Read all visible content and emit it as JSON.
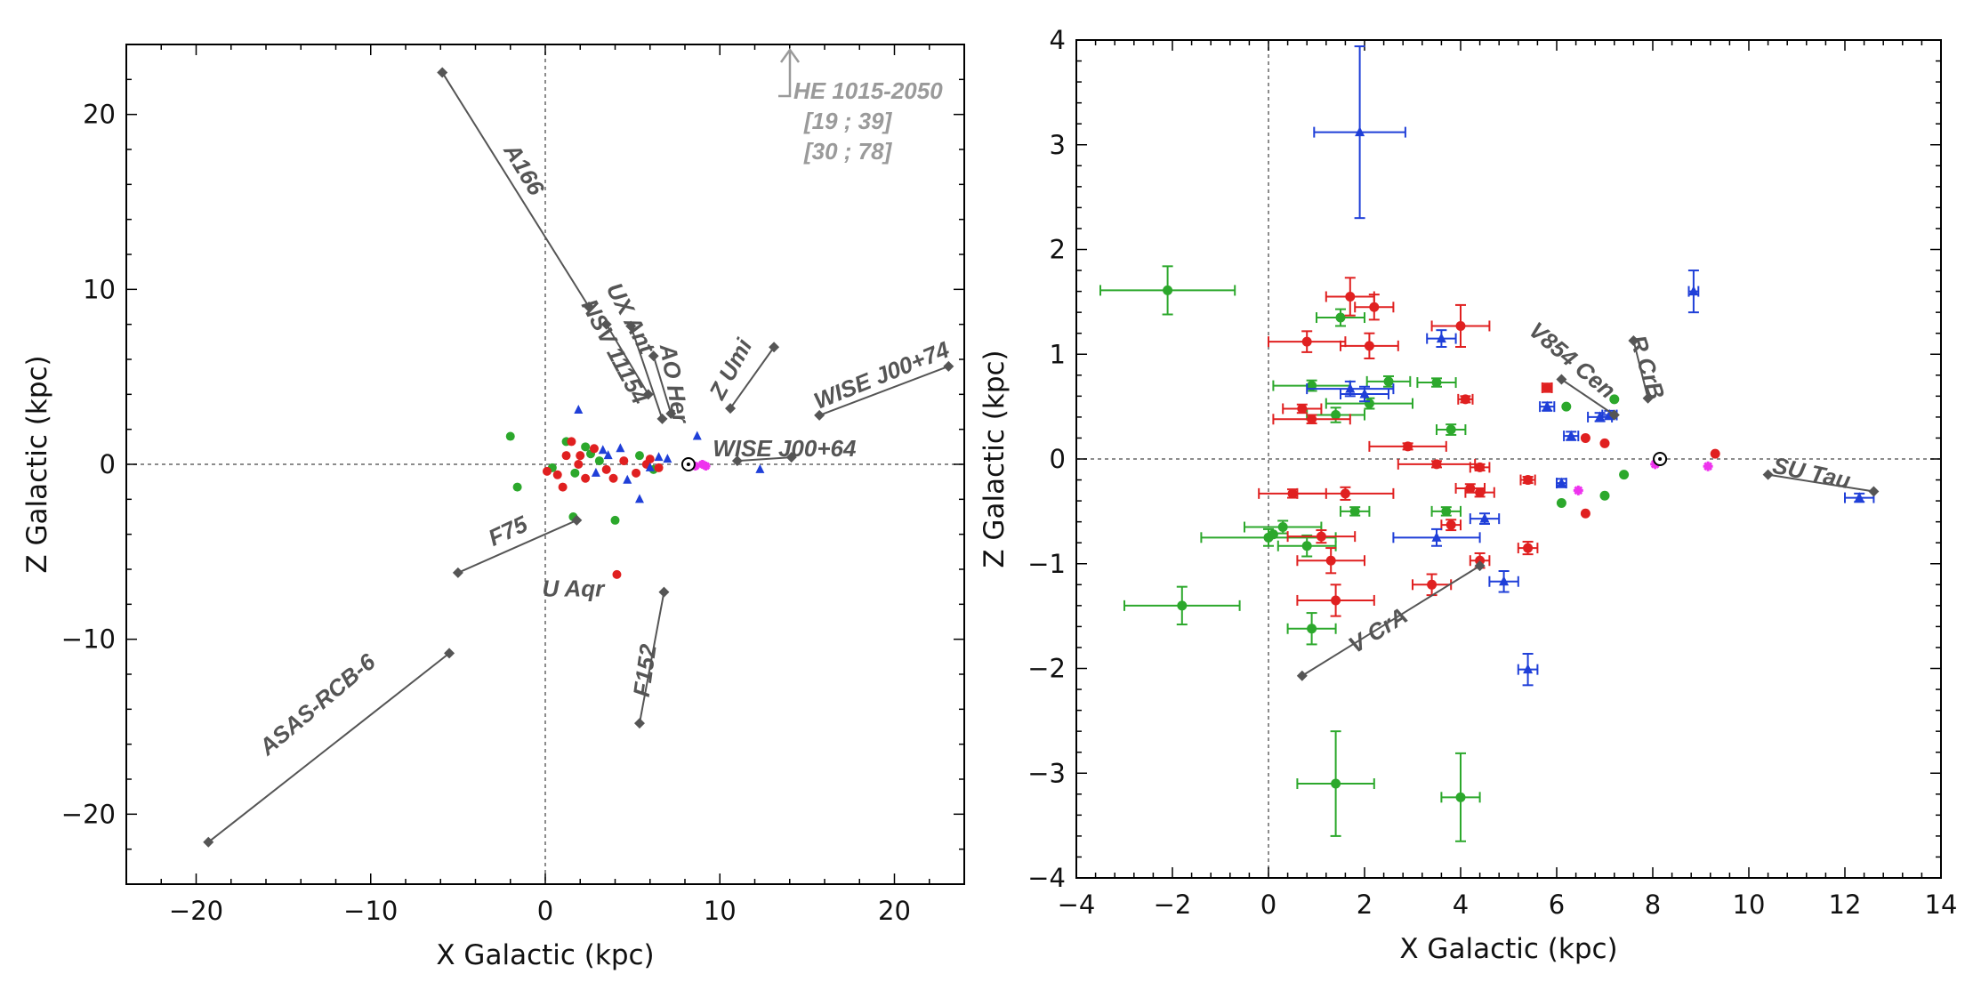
{
  "colors": {
    "green": "#2ca82c",
    "red": "#e02020",
    "blue": "#1f3fd8",
    "magenta": "#ee33ee",
    "track": "#555555",
    "annotation": "#555555",
    "annotation_light": "#9a9a9a"
  },
  "chart_data": [
    {
      "type": "scatter",
      "panel": "left",
      "xlabel": "X Galactic (kpc)",
      "ylabel": "Z Galactic (kpc)",
      "xlim": [
        -24,
        24
      ],
      "ylim": [
        -24,
        24
      ],
      "xticks": [
        -20,
        -10,
        0,
        10,
        20
      ],
      "yticks": [
        -20,
        -10,
        0,
        10,
        20
      ],
      "ref_lines": {
        "x": 0,
        "y": 0
      },
      "sun": [
        8.2,
        0.0
      ],
      "tracks": [
        {
          "name": "A166",
          "label_pos": [
            -1.3,
            16.8
          ],
          "rotate": 59,
          "from": [
            -5.9,
            22.4
          ],
          "to": [
            2.5,
            9.0
          ]
        },
        {
          "name": "NSV 11154",
          "label_pos": [
            3.9,
            6.4
          ],
          "rotate": 62,
          "from": [
            3.5,
            8.0
          ],
          "to": [
            5.9,
            4.0
          ]
        },
        {
          "name": "UX Ant",
          "label_pos": [
            4.8,
            8.3
          ],
          "rotate": 62,
          "from": [
            4.9,
            7.9
          ],
          "to": [
            6.7,
            2.6
          ]
        },
        {
          "name": "AO Her",
          "label_pos": [
            7.3,
            4.6
          ],
          "rotate": 80,
          "from": [
            6.2,
            6.2
          ],
          "to": [
            7.2,
            2.9
          ]
        },
        {
          "name": "Z Umi",
          "label_pos": [
            10.7,
            5.4
          ],
          "rotate": -62,
          "from": [
            10.6,
            3.2
          ],
          "to": [
            13.1,
            6.7
          ]
        },
        {
          "name": "WISE J00+74",
          "label_pos": [
            19.3,
            5.0
          ],
          "rotate": -22,
          "from": [
            15.7,
            2.8
          ],
          "to": [
            23.1,
            5.6
          ]
        },
        {
          "name": "WISE J00+64",
          "label_pos": [
            13.7,
            0.8
          ],
          "rotate": 0,
          "from": [
            11.0,
            0.2
          ],
          "to": [
            14.1,
            0.4
          ]
        },
        {
          "name": "F75",
          "label_pos": [
            -2.1,
            -3.9
          ],
          "rotate": -25,
          "from": [
            -5.0,
            -6.2
          ],
          "to": [
            1.8,
            -3.2
          ]
        },
        {
          "name": "U Aqr",
          "label_pos": [
            1.6,
            -7.2
          ],
          "rotate": 0,
          "from": null,
          "to": null
        },
        {
          "name": "F152",
          "label_pos": [
            5.8,
            -11.8
          ],
          "rotate": -82,
          "from": [
            6.8,
            -7.3
          ],
          "to": [
            5.4,
            -14.8
          ]
        },
        {
          "name": "ASAS-RCB-6",
          "label_pos": [
            -13.0,
            -13.8
          ],
          "rotate": -40,
          "from": [
            -5.5,
            -10.8
          ],
          "to": [
            -19.3,
            -21.6
          ]
        }
      ],
      "outlier": {
        "name": "HE 1015-2050",
        "ranges": [
          "[19 ; 39]",
          "[30 ; 78]"
        ]
      },
      "series": [
        {
          "name": "green",
          "points": [
            [
              -2.0,
              1.6
            ],
            [
              -1.6,
              -1.3
            ],
            [
              1.2,
              1.3
            ],
            [
              2.3,
              1.0
            ],
            [
              1.7,
              -0.5
            ],
            [
              1.6,
              -3.0
            ],
            [
              4.0,
              -3.2
            ],
            [
              3.1,
              0.2
            ],
            [
              0.4,
              -0.2
            ],
            [
              2.6,
              0.6
            ],
            [
              5.4,
              0.5
            ],
            [
              6.2,
              -0.3
            ]
          ]
        },
        {
          "name": "red",
          "points": [
            [
              4.1,
              -6.3
            ],
            [
              1.5,
              1.3
            ],
            [
              1.2,
              0.5
            ],
            [
              1.9,
              0.0
            ],
            [
              0.7,
              -0.6
            ],
            [
              2.3,
              -0.8
            ],
            [
              3.5,
              -0.3
            ],
            [
              3.9,
              -0.8
            ],
            [
              0.1,
              -0.4
            ],
            [
              1.0,
              -1.3
            ],
            [
              2.8,
              0.9
            ],
            [
              2.0,
              0.5
            ],
            [
              4.5,
              0.2
            ],
            [
              5.2,
              -0.5
            ],
            [
              6.0,
              0.3
            ],
            [
              6.5,
              -0.2
            ],
            [
              5.8,
              0.0
            ]
          ]
        },
        {
          "name": "blue",
          "points": [
            [
              1.9,
              3.1
            ],
            [
              8.7,
              1.6
            ],
            [
              5.4,
              -2.0
            ],
            [
              12.3,
              -0.3
            ],
            [
              4.3,
              0.9
            ],
            [
              3.6,
              0.5
            ],
            [
              6.5,
              0.4
            ],
            [
              7.0,
              0.3
            ],
            [
              4.7,
              -0.9
            ],
            [
              3.3,
              0.8
            ],
            [
              2.9,
              -0.5
            ],
            [
              6.0,
              -0.2
            ]
          ]
        },
        {
          "name": "magenta",
          "points": [
            [
              9.2,
              -0.1
            ],
            [
              9.0,
              0.0
            ],
            [
              8.6,
              -0.1
            ]
          ]
        }
      ]
    },
    {
      "type": "scatter",
      "panel": "right",
      "xlabel": "X Galactic (kpc)",
      "ylabel": "Z Galactic (kpc)",
      "xlim": [
        -4,
        14
      ],
      "ylim": [
        -4,
        4
      ],
      "xticks": [
        -4,
        -2,
        0,
        2,
        4,
        6,
        8,
        10,
        12,
        14
      ],
      "yticks": [
        -4,
        -3,
        -2,
        -1,
        0,
        1,
        2,
        3,
        4
      ],
      "ref_lines": {
        "x": 0,
        "y": 0
      },
      "sun": [
        8.15,
        0.0
      ],
      "tracks": [
        {
          "name": "V854 Cen",
          "label_pos": [
            6.3,
            0.93
          ],
          "rotate": 40,
          "from": [
            6.1,
            0.76
          ],
          "to": [
            7.2,
            0.42
          ]
        },
        {
          "name": "R CrB",
          "label_pos": [
            7.85,
            0.87
          ],
          "rotate": 72,
          "from": [
            7.6,
            1.13
          ],
          "to": [
            7.9,
            0.58
          ]
        },
        {
          "name": "SU Tau",
          "label_pos": [
            11.3,
            -0.15
          ],
          "rotate": 12,
          "from": [
            10.4,
            -0.15
          ],
          "to": [
            12.6,
            -0.31
          ]
        },
        {
          "name": "V CrA",
          "label_pos": [
            2.3,
            -1.65
          ],
          "rotate": -32,
          "from": [
            0.7,
            -2.07
          ],
          "to": [
            4.4,
            -1.02
          ]
        }
      ],
      "series": [
        {
          "name": "green",
          "points": [
            {
              "x": -2.1,
              "y": 1.61,
              "xerr": 1.4,
              "yerr": 0.23
            },
            {
              "x": 1.5,
              "y": 1.35,
              "xerr": 0.5,
              "yerr": 0.08
            },
            {
              "x": 0.9,
              "y": 0.7,
              "xerr": 0.8,
              "yerr": 0.05
            },
            {
              "x": 2.5,
              "y": 0.74,
              "xerr": 0.45,
              "yerr": 0.05
            },
            {
              "x": 3.5,
              "y": 0.73,
              "xerr": 0.4,
              "yerr": 0.04
            },
            {
              "x": 2.1,
              "y": 0.53,
              "xerr": 0.9,
              "yerr": 0.05
            },
            {
              "x": 1.4,
              "y": 0.42,
              "xerr": 0.6,
              "yerr": 0.07
            },
            {
              "x": 3.8,
              "y": 0.28,
              "xerr": 0.3,
              "yerr": 0.05
            },
            {
              "x": 3.7,
              "y": -0.5,
              "xerr": 0.3,
              "yerr": 0.04
            },
            {
              "x": 1.8,
              "y": -0.5,
              "xerr": 0.3,
              "yerr": 0.04
            },
            {
              "x": 0.3,
              "y": -0.65,
              "xerr": 0.8,
              "yerr": 0.06
            },
            {
              "x": 0.0,
              "y": -0.75,
              "xerr": 1.4,
              "yerr": 0.08
            },
            {
              "x": 0.8,
              "y": -0.83,
              "xerr": 0.6,
              "yerr": 0.1
            },
            {
              "x": -1.8,
              "y": -1.4,
              "xerr": 1.2,
              "yerr": 0.18
            },
            {
              "x": 0.9,
              "y": -1.62,
              "xerr": 0.5,
              "yerr": 0.15
            },
            {
              "x": 1.4,
              "y": -3.1,
              "xerr": 0.8,
              "yerr": 0.5
            },
            {
              "x": 4.0,
              "y": -3.23,
              "xerr": 0.4,
              "yerr": 0.42
            },
            {
              "x": 7.2,
              "y": 0.57,
              "xerr": 0,
              "yerr": 0
            },
            {
              "x": 6.2,
              "y": 0.5,
              "xerr": 0,
              "yerr": 0
            },
            {
              "x": 6.1,
              "y": -0.42,
              "xerr": 0,
              "yerr": 0
            },
            {
              "x": 7.0,
              "y": -0.35,
              "xerr": 0,
              "yerr": 0
            },
            {
              "x": 7.4,
              "y": -0.15,
              "xerr": 0,
              "yerr": 0
            },
            {
              "x": 0.1,
              "y": -0.72,
              "xerr": 0,
              "yerr": 0
            }
          ]
        },
        {
          "name": "red",
          "points": [
            {
              "x": 1.7,
              "y": 1.55,
              "xerr": 0.5,
              "yerr": 0.18
            },
            {
              "x": 2.2,
              "y": 1.45,
              "xerr": 0.4,
              "yerr": 0.12
            },
            {
              "x": 0.8,
              "y": 1.12,
              "xerr": 0.8,
              "yerr": 0.1
            },
            {
              "x": 2.1,
              "y": 1.08,
              "xerr": 0.6,
              "yerr": 0.12
            },
            {
              "x": 4.0,
              "y": 1.27,
              "xerr": 0.6,
              "yerr": 0.2
            },
            {
              "x": 5.8,
              "y": 0.68,
              "xerr": 0.1,
              "yerr": 0.04
            },
            {
              "x": 4.1,
              "y": 0.57,
              "xerr": 0.15,
              "yerr": 0.03
            },
            {
              "x": 0.7,
              "y": 0.48,
              "xerr": 0.4,
              "yerr": 0.04
            },
            {
              "x": 0.9,
              "y": 0.38,
              "xerr": 0.8,
              "yerr": 0.04
            },
            {
              "x": 2.9,
              "y": 0.12,
              "xerr": 0.8,
              "yerr": 0.03
            },
            {
              "x": 3.5,
              "y": -0.05,
              "xerr": 0.8,
              "yerr": 0.03
            },
            {
              "x": 4.4,
              "y": -0.08,
              "xerr": 0.2,
              "yerr": 0.03
            },
            {
              "x": 0.5,
              "y": -0.33,
              "xerr": 0.7,
              "yerr": 0.04
            },
            {
              "x": 1.6,
              "y": -0.33,
              "xerr": 1.0,
              "yerr": 0.06
            },
            {
              "x": 4.2,
              "y": -0.28,
              "xerr": 0.3,
              "yerr": 0.04
            },
            {
              "x": 4.4,
              "y": -0.32,
              "xerr": 0.3,
              "yerr": 0.04
            },
            {
              "x": 5.4,
              "y": -0.2,
              "xerr": 0.15,
              "yerr": 0.03
            },
            {
              "x": 3.8,
              "y": -0.63,
              "xerr": 0.2,
              "yerr": 0.05
            },
            {
              "x": 1.1,
              "y": -0.74,
              "xerr": 0.7,
              "yerr": 0.06
            },
            {
              "x": 1.3,
              "y": -0.97,
              "xerr": 0.7,
              "yerr": 0.12
            },
            {
              "x": 4.4,
              "y": -0.97,
              "xerr": 0.2,
              "yerr": 0.07
            },
            {
              "x": 5.4,
              "y": -0.85,
              "xerr": 0.2,
              "yerr": 0.06
            },
            {
              "x": 3.4,
              "y": -1.2,
              "xerr": 0.4,
              "yerr": 0.1
            },
            {
              "x": 1.4,
              "y": -1.35,
              "xerr": 0.8,
              "yerr": 0.15
            },
            {
              "x": 6.6,
              "y": 0.2,
              "xerr": 0,
              "yerr": 0
            },
            {
              "x": 7.0,
              "y": 0.15,
              "xerr": 0,
              "yerr": 0
            },
            {
              "x": 6.6,
              "y": -0.52,
              "xerr": 0,
              "yerr": 0
            },
            {
              "x": 9.3,
              "y": 0.05,
              "xerr": 0,
              "yerr": 0
            }
          ]
        },
        {
          "name": "blue",
          "points": [
            {
              "x": 1.9,
              "y": 3.12,
              "xerr": 0.95,
              "yerr": 0.82
            },
            {
              "x": 8.85,
              "y": 1.6,
              "xerr": 0.1,
              "yerr": 0.2
            },
            {
              "x": 3.6,
              "y": 1.15,
              "xerr": 0.3,
              "yerr": 0.08
            },
            {
              "x": 1.7,
              "y": 0.67,
              "xerr": 0.9,
              "yerr": 0.07
            },
            {
              "x": 2.0,
              "y": 0.62,
              "xerr": 0.5,
              "yerr": 0.07
            },
            {
              "x": 5.8,
              "y": 0.5,
              "xerr": 0.15,
              "yerr": 0.04
            },
            {
              "x": 6.9,
              "y": 0.4,
              "xerr": 0.25,
              "yerr": 0.04
            },
            {
              "x": 7.1,
              "y": 0.42,
              "xerr": 0.15,
              "yerr": 0.04
            },
            {
              "x": 6.3,
              "y": 0.22,
              "xerr": 0.15,
              "yerr": 0.04
            },
            {
              "x": 6.1,
              "y": -0.23,
              "xerr": 0.1,
              "yerr": 0.04
            },
            {
              "x": 4.5,
              "y": -0.57,
              "xerr": 0.3,
              "yerr": 0.05
            },
            {
              "x": 3.5,
              "y": -0.75,
              "xerr": 0.9,
              "yerr": 0.08
            },
            {
              "x": 4.9,
              "y": -1.17,
              "xerr": 0.3,
              "yerr": 0.1
            },
            {
              "x": 5.4,
              "y": -2.01,
              "xerr": 0.2,
              "yerr": 0.15
            },
            {
              "x": 12.3,
              "y": -0.37,
              "xerr": 0.3,
              "yerr": 0.04
            }
          ]
        },
        {
          "name": "magenta",
          "points": [
            {
              "x": 6.45,
              "y": -0.3,
              "xerr": 0,
              "yerr": 0
            },
            {
              "x": 9.15,
              "y": -0.07,
              "xerr": 0,
              "yerr": 0
            },
            {
              "x": 8.05,
              "y": -0.05,
              "xerr": 0,
              "yerr": 0
            }
          ]
        }
      ]
    }
  ]
}
